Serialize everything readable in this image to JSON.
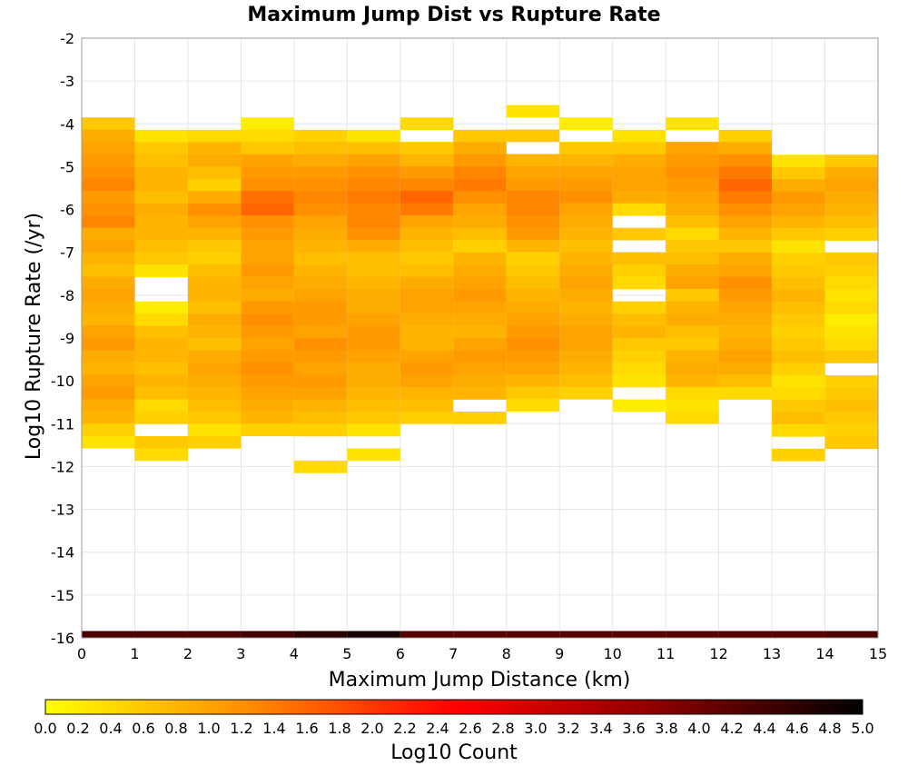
{
  "chart_data": {
    "type": "heatmap",
    "title": "Maximum Jump Dist vs Rupture Rate",
    "xlabel": "Maximum Jump Distance (km)",
    "ylabel": "Log10 Rupture Rate (/yr)",
    "xlim": [
      0,
      15
    ],
    "ylim": [
      -16,
      -2
    ],
    "x_ticks": [
      "0",
      "1",
      "2",
      "3",
      "4",
      "5",
      "6",
      "7",
      "8",
      "9",
      "10",
      "11",
      "12",
      "13",
      "14",
      "15"
    ],
    "y_ticks": [
      "-2",
      "-3",
      "-4",
      "-5",
      "-6",
      "-7",
      "-8",
      "-9",
      "-10",
      "-11",
      "-12",
      "-13",
      "-14",
      "-15",
      "-16"
    ],
    "bin_width_x": 1,
    "bin_height_y": 0.286,
    "value_label": "Log10 Count",
    "colorscale": {
      "min": 0.0,
      "max": 5.0,
      "ticks": [
        "0.0",
        "0.2",
        "0.4",
        "0.6",
        "0.8",
        "1.0",
        "1.2",
        "1.4",
        "1.6",
        "1.8",
        "2.0",
        "2.2",
        "2.4",
        "2.6",
        "2.8",
        "3.0",
        "3.2",
        "3.4",
        "3.6",
        "3.8",
        "4.0",
        "4.2",
        "4.4",
        "4.6",
        "4.8",
        "5.0"
      ],
      "stops": [
        "#ffff00",
        "#ff8c00",
        "#ff0000",
        "#8b0000",
        "#000000"
      ]
    },
    "columns": [
      {
        "x": 0,
        "ymax": -3.85,
        "values": [
          0.6,
          0.9,
          1.0,
          1.1,
          1.2,
          1.3,
          1.1,
          1.2,
          1.3,
          0.9,
          1.0,
          0.8,
          0.7,
          0.9,
          1.0,
          0.9,
          0.8,
          1.0,
          1.1,
          0.9,
          0.8,
          1.0,
          1.1,
          0.9,
          0.8,
          0.5,
          0.3
        ]
      },
      {
        "x": 1,
        "ymax": -4.14,
        "values": [
          0.3,
          0.6,
          0.7,
          0.8,
          0.8,
          0.7,
          0.9,
          0.8,
          0.8,
          0.7,
          0.6,
          0.3,
          null,
          null,
          0.2,
          0.4,
          0.7,
          0.8,
          0.8,
          0.7,
          0.8,
          0.7,
          0.4,
          0.5,
          null,
          0.6,
          0.4
        ]
      },
      {
        "x": 2,
        "ymax": -4.14,
        "values": [
          0.4,
          0.8,
          0.9,
          0.7,
          0.5,
          0.9,
          1.2,
          1.0,
          0.8,
          0.6,
          0.5,
          0.7,
          0.8,
          0.8,
          0.7,
          0.9,
          0.8,
          0.7,
          0.9,
          1.0,
          0.9,
          0.8,
          0.7,
          0.6,
          0.3,
          0.5
        ]
      },
      {
        "x": 3,
        "ymax": -3.85,
        "values": [
          0.2,
          0.4,
          0.6,
          1.0,
          1.1,
          1.2,
          1.5,
          1.6,
          1.2,
          1.1,
          1.0,
          1.0,
          1.1,
          1.0,
          0.9,
          1.1,
          1.2,
          1.1,
          1.0,
          1.1,
          1.2,
          1.1,
          1.0,
          0.9,
          0.8,
          0.5
        ]
      },
      {
        "x": 4,
        "ymax": -4.14,
        "values": [
          0.5,
          0.7,
          0.9,
          1.1,
          1.2,
          1.3,
          1.2,
          1.0,
          0.9,
          0.8,
          0.7,
          0.8,
          0.9,
          1.0,
          1.1,
          1.1,
          1.0,
          1.2,
          1.1,
          1.0,
          1.1,
          1.0,
          0.8,
          0.7,
          0.5,
          null,
          null,
          0.4,
          null,
          null
        ]
      },
      {
        "x": 5,
        "ymax": -4.14,
        "values": [
          0.3,
          0.7,
          1.0,
          1.2,
          1.3,
          1.4,
          1.3,
          1.3,
          1.2,
          0.9,
          0.7,
          0.7,
          0.8,
          0.9,
          0.9,
          1.0,
          1.1,
          1.1,
          1.0,
          0.9,
          0.9,
          0.8,
          0.7,
          0.6,
          0.3,
          null,
          0.3
        ]
      },
      {
        "x": 6,
        "ymax": -3.85,
        "values": [
          0.4,
          null,
          0.6,
          0.8,
          1.1,
          1.3,
          1.6,
          1.4,
          1.0,
          0.8,
          0.7,
          0.6,
          0.7,
          0.9,
          1.0,
          1.0,
          0.9,
          0.8,
          0.8,
          1.0,
          1.1,
          1.0,
          0.8,
          0.7,
          0.5
        ]
      },
      {
        "x": 7,
        "ymax": -4.14,
        "values": [
          0.6,
          0.9,
          1.1,
          1.3,
          1.4,
          1.2,
          1.0,
          0.9,
          0.7,
          0.5,
          0.8,
          0.9,
          1.0,
          1.1,
          1.0,
          0.9,
          0.8,
          1.0,
          1.1,
          1.0,
          0.9,
          0.8,
          null,
          0.5
        ]
      },
      {
        "x": 8,
        "ymax": -3.56,
        "values": [
          0.3,
          null,
          0.6,
          null,
          0.8,
          1.0,
          1.1,
          1.3,
          1.3,
          1.2,
          1.1,
          0.8,
          0.5,
          0.6,
          0.7,
          0.8,
          0.9,
          1.0,
          1.1,
          1.2,
          1.1,
          1.0,
          0.8,
          0.6,
          0.4
        ]
      },
      {
        "x": 9,
        "ymax": -3.85,
        "values": [
          0.2,
          null,
          0.6,
          0.8,
          1.0,
          1.1,
          1.2,
          1.0,
          0.9,
          0.8,
          0.7,
          0.8,
          0.9,
          1.0,
          0.9,
          0.8,
          0.9,
          1.0,
          1.0,
          0.9,
          0.8,
          0.7,
          0.5
        ]
      },
      {
        "x": 10,
        "ymax": -4.14,
        "values": [
          0.3,
          0.6,
          0.9,
          1.0,
          1.0,
          0.9,
          0.4,
          null,
          0.6,
          null,
          0.7,
          0.5,
          0.4,
          null,
          0.5,
          0.7,
          0.8,
          0.6,
          0.5,
          0.4,
          0.3,
          null,
          0.2
        ]
      },
      {
        "x": 11,
        "ymax": -3.85,
        "values": [
          0.3,
          null,
          1.0,
          1.1,
          1.2,
          1.1,
          1.0,
          0.9,
          0.7,
          0.4,
          0.6,
          0.7,
          0.9,
          1.0,
          0.6,
          0.8,
          0.9,
          0.7,
          0.6,
          0.8,
          0.9,
          0.8,
          0.4,
          0.3,
          0.4
        ]
      },
      {
        "x": 12,
        "ymax": -4.14,
        "values": [
          0.5,
          0.9,
          1.2,
          1.4,
          1.6,
          1.4,
          1.2,
          1.0,
          0.8,
          0.6,
          0.9,
          1.0,
          1.2,
          1.1,
          1.0,
          0.9,
          0.8,
          0.9,
          1.0,
          0.9,
          0.7,
          0.4
        ]
      },
      {
        "x": 13,
        "ymax": -4.72,
        "values": [
          0.3,
          0.6,
          0.9,
          1.1,
          1.0,
          0.8,
          0.6,
          0.3,
          0.5,
          0.6,
          0.7,
          0.8,
          0.7,
          0.6,
          0.5,
          0.6,
          0.7,
          0.5,
          0.3,
          0.4,
          0.6,
          0.7,
          0.4,
          null,
          0.5
        ]
      },
      {
        "x": 14,
        "ymax": -4.72,
        "values": [
          0.6,
          0.9,
          1.0,
          0.9,
          0.8,
          0.7,
          0.5,
          null,
          0.6,
          0.5,
          0.4,
          0.3,
          0.4,
          0.2,
          0.3,
          0.4,
          0.6,
          null,
          0.5,
          0.6,
          0.7,
          0.6,
          0.5,
          0.6
        ]
      }
    ],
    "baseline_row": {
      "y": -16,
      "values": [
        4.3,
        4.3,
        4.3,
        4.4,
        4.6,
        4.8,
        4.2,
        4.2,
        4.2,
        4.2,
        4.2,
        4.2,
        4.2,
        4.2,
        4.3
      ]
    }
  }
}
